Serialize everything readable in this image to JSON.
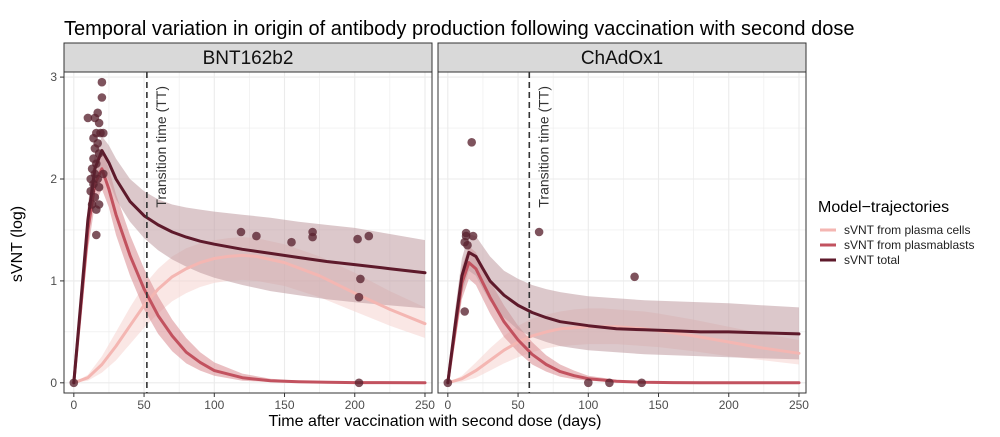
{
  "chart_data": {
    "type": "line",
    "title": "Temporal variation in origin of antibody production following vaccination with second dose",
    "xlabel": "Time after vaccination with second dose (days)",
    "ylabel": "sVNT (log)",
    "xlim": [
      -7,
      255
    ],
    "ylim": [
      -0.1,
      3.05
    ],
    "xticks": [
      0,
      50,
      100,
      150,
      200,
      250
    ],
    "yticks": [
      0,
      1,
      2,
      3
    ],
    "grid": true,
    "legend": {
      "title": "Model−trajectories",
      "placement": "right",
      "entries": [
        "sVNT from plasma cells",
        "sVNT from plasmablasts",
        "sVNT total"
      ]
    },
    "colors": {
      "plasma_cells": "#f4b6b2",
      "plasmablasts": "#c2525f",
      "total": "#5e1a2b",
      "points": "#5a2330",
      "band_total": "#bf9aa0",
      "band_plasmablasts": "#d98a8f",
      "band_plasma_cells": "#f6d3d0",
      "strip_fill": "#d9d9d9",
      "panel_bg": "#ffffff",
      "grid": "#ebebeb"
    },
    "transition_label": "Transition time (TT)",
    "panels": [
      {
        "name": "BNT162b2",
        "transition_time": 52,
        "series": [
          {
            "name": "sVNT from plasma cells",
            "x": [
              0,
              10,
              20,
              30,
              40,
              50,
              60,
              70,
              80,
              90,
              100,
              110,
              120,
              130,
              150,
              175,
              200,
              225,
              250
            ],
            "y": [
              0,
              0.05,
              0.18,
              0.36,
              0.56,
              0.76,
              0.92,
              1.04,
              1.12,
              1.18,
              1.22,
              1.24,
              1.25,
              1.24,
              1.18,
              1.05,
              0.88,
              0.72,
              0.58
            ],
            "lower": [
              0,
              0.02,
              0.1,
              0.22,
              0.38,
              0.54,
              0.68,
              0.8,
              0.88,
              0.94,
              0.98,
              1.0,
              1.01,
              1.0,
              0.95,
              0.84,
              0.7,
              0.56,
              0.44
            ],
            "upper": [
              0,
              0.08,
              0.26,
              0.5,
              0.74,
              0.96,
              1.12,
              1.24,
              1.32,
              1.37,
              1.4,
              1.42,
              1.43,
              1.42,
              1.36,
              1.24,
              1.08,
              0.9,
              0.74
            ]
          },
          {
            "name": "sVNT from plasmablasts",
            "x": [
              0,
              5,
              10,
              15,
              20,
              25,
              30,
              40,
              50,
              60,
              70,
              80,
              90,
              100,
              120,
              140,
              160,
              180,
              200,
              250
            ],
            "y": [
              0,
              0.75,
              1.5,
              1.95,
              2.1,
              1.9,
              1.65,
              1.25,
              0.92,
              0.66,
              0.46,
              0.3,
              0.2,
              0.12,
              0.05,
              0.02,
              0.01,
              0.005,
              0.002,
              0
            ],
            "lower": [
              0,
              0.6,
              1.3,
              1.75,
              1.9,
              1.72,
              1.45,
              1.05,
              0.72,
              0.48,
              0.31,
              0.19,
              0.12,
              0.07,
              0.02,
              0.008,
              0.003,
              0.001,
              0,
              0
            ],
            "upper": [
              0,
              0.9,
              1.7,
              2.15,
              2.3,
              2.1,
              1.85,
              1.45,
              1.12,
              0.85,
              0.62,
              0.44,
              0.3,
              0.2,
              0.09,
              0.04,
              0.02,
              0.01,
              0.005,
              0
            ]
          },
          {
            "name": "sVNT total",
            "x": [
              0,
              5,
              10,
              15,
              20,
              25,
              30,
              40,
              50,
              60,
              70,
              80,
              90,
              100,
              120,
              140,
              160,
              180,
              200,
              225,
              250
            ],
            "y": [
              0,
              0.8,
              1.6,
              2.1,
              2.28,
              2.16,
              2.0,
              1.78,
              1.64,
              1.55,
              1.48,
              1.43,
              1.39,
              1.36,
              1.31,
              1.27,
              1.23,
              1.19,
              1.16,
              1.12,
              1.08
            ],
            "lower": [
              0,
              0.65,
              1.45,
              1.95,
              2.12,
              1.98,
              1.8,
              1.58,
              1.42,
              1.3,
              1.21,
              1.14,
              1.08,
              1.03,
              0.96,
              0.9,
              0.86,
              0.82,
              0.79,
              0.76,
              0.73
            ],
            "upper": [
              0,
              0.95,
              1.75,
              2.25,
              2.42,
              2.33,
              2.2,
              2.0,
              1.88,
              1.8,
              1.75,
              1.72,
              1.7,
              1.68,
              1.65,
              1.62,
              1.58,
              1.55,
              1.52,
              1.46,
              1.4
            ]
          }
        ],
        "points": [
          {
            "x": 0,
            "y": 0
          },
          {
            "x": 10,
            "y": 2.6
          },
          {
            "x": 12,
            "y": 2.0
          },
          {
            "x": 12,
            "y": 1.88
          },
          {
            "x": 13,
            "y": 2.1
          },
          {
            "x": 13,
            "y": 1.75
          },
          {
            "x": 14,
            "y": 2.4
          },
          {
            "x": 14,
            "y": 2.2
          },
          {
            "x": 14,
            "y": 1.95
          },
          {
            "x": 15,
            "y": 2.6
          },
          {
            "x": 15,
            "y": 2.3
          },
          {
            "x": 15,
            "y": 2.05
          },
          {
            "x": 15,
            "y": 1.82
          },
          {
            "x": 16,
            "y": 2.45
          },
          {
            "x": 16,
            "y": 2.15
          },
          {
            "x": 16,
            "y": 1.7
          },
          {
            "x": 16,
            "y": 1.45
          },
          {
            "x": 17,
            "y": 2.65
          },
          {
            "x": 17,
            "y": 2.35
          },
          {
            "x": 17,
            "y": 2.0
          },
          {
            "x": 18,
            "y": 2.55
          },
          {
            "x": 18,
            "y": 2.25
          },
          {
            "x": 18,
            "y": 1.92
          },
          {
            "x": 18,
            "y": 1.75
          },
          {
            "x": 19,
            "y": 2.45
          },
          {
            "x": 20,
            "y": 2.95
          },
          {
            "x": 20,
            "y": 2.8
          },
          {
            "x": 21,
            "y": 2.45
          },
          {
            "x": 21,
            "y": 2.05
          },
          {
            "x": 119,
            "y": 1.48
          },
          {
            "x": 130,
            "y": 1.44
          },
          {
            "x": 155,
            "y": 1.38
          },
          {
            "x": 170,
            "y": 1.48
          },
          {
            "x": 170,
            "y": 1.43
          },
          {
            "x": 202,
            "y": 1.41
          },
          {
            "x": 203,
            "y": 0.84
          },
          {
            "x": 204,
            "y": 1.02
          },
          {
            "x": 203,
            "y": 0.0
          },
          {
            "x": 210,
            "y": 1.44
          }
        ]
      },
      {
        "name": "ChAdOx1",
        "transition_time": 58,
        "series": [
          {
            "name": "sVNT from plasma cells",
            "x": [
              0,
              10,
              20,
              30,
              40,
              50,
              60,
              70,
              80,
              90,
              100,
              110,
              120,
              130,
              140,
              150,
              175,
              200,
              225,
              250
            ],
            "y": [
              0,
              0.04,
              0.12,
              0.22,
              0.32,
              0.4,
              0.46,
              0.5,
              0.53,
              0.54,
              0.55,
              0.55,
              0.55,
              0.54,
              0.53,
              0.51,
              0.46,
              0.4,
              0.34,
              0.29
            ],
            "lower": [
              0,
              0.01,
              0.05,
              0.12,
              0.19,
              0.25,
              0.3,
              0.34,
              0.36,
              0.37,
              0.38,
              0.38,
              0.38,
              0.37,
              0.36,
              0.35,
              0.31,
              0.26,
              0.22,
              0.18
            ],
            "upper": [
              0,
              0.07,
              0.2,
              0.34,
              0.46,
              0.56,
              0.63,
              0.67,
              0.7,
              0.72,
              0.73,
              0.73,
              0.72,
              0.71,
              0.7,
              0.68,
              0.62,
              0.55,
              0.48,
              0.42
            ]
          },
          {
            "name": "sVNT from plasmablasts",
            "x": [
              0,
              5,
              10,
              15,
              20,
              25,
              30,
              40,
              50,
              60,
              70,
              80,
              90,
              100,
              120,
              140,
              160,
              180,
              200,
              250
            ],
            "y": [
              0,
              0.5,
              0.98,
              1.18,
              1.12,
              0.98,
              0.84,
              0.6,
              0.42,
              0.28,
              0.18,
              0.11,
              0.07,
              0.04,
              0.015,
              0.005,
              0.002,
              0,
              0,
              0
            ],
            "lower": [
              0,
              0.38,
              0.82,
              1.02,
              0.96,
              0.82,
              0.68,
              0.45,
              0.3,
              0.18,
              0.11,
              0.06,
              0.035,
              0.02,
              0.005,
              0.001,
              0,
              0,
              0,
              0
            ],
            "upper": [
              0,
              0.62,
              1.14,
              1.34,
              1.28,
              1.14,
              1.0,
              0.76,
              0.56,
              0.4,
              0.27,
              0.18,
              0.12,
              0.07,
              0.03,
              0.01,
              0.005,
              0.002,
              0,
              0
            ]
          },
          {
            "name": "sVNT total",
            "x": [
              0,
              5,
              10,
              15,
              20,
              25,
              30,
              40,
              50,
              60,
              70,
              80,
              90,
              100,
              120,
              140,
              160,
              180,
              200,
              225,
              250
            ],
            "y": [
              0,
              0.55,
              1.05,
              1.28,
              1.24,
              1.12,
              1.0,
              0.86,
              0.76,
              0.69,
              0.64,
              0.6,
              0.58,
              0.56,
              0.53,
              0.52,
              0.51,
              0.5,
              0.5,
              0.49,
              0.48
            ],
            "lower": [
              0,
              0.4,
              0.88,
              1.1,
              1.05,
              0.92,
              0.8,
              0.64,
              0.52,
              0.45,
              0.4,
              0.36,
              0.34,
              0.32,
              0.3,
              0.28,
              0.27,
              0.26,
              0.25,
              0.24,
              0.23
            ],
            "upper": [
              0,
              0.7,
              1.22,
              1.46,
              1.44,
              1.34,
              1.24,
              1.1,
              1.02,
              0.96,
              0.92,
              0.89,
              0.87,
              0.85,
              0.83,
              0.81,
              0.8,
              0.79,
              0.78,
              0.76,
              0.74
            ]
          }
        ],
        "points": [
          {
            "x": 0,
            "y": 0
          },
          {
            "x": 12,
            "y": 0.7
          },
          {
            "x": 12,
            "y": 1.38
          },
          {
            "x": 13,
            "y": 1.44
          },
          {
            "x": 13,
            "y": 1.47
          },
          {
            "x": 14,
            "y": 1.35
          },
          {
            "x": 17,
            "y": 2.36
          },
          {
            "x": 18,
            "y": 1.44
          },
          {
            "x": 65,
            "y": 1.48
          },
          {
            "x": 100,
            "y": 0
          },
          {
            "x": 115,
            "y": 0
          },
          {
            "x": 133,
            "y": 1.04
          },
          {
            "x": 138,
            "y": 0
          }
        ]
      }
    ]
  }
}
